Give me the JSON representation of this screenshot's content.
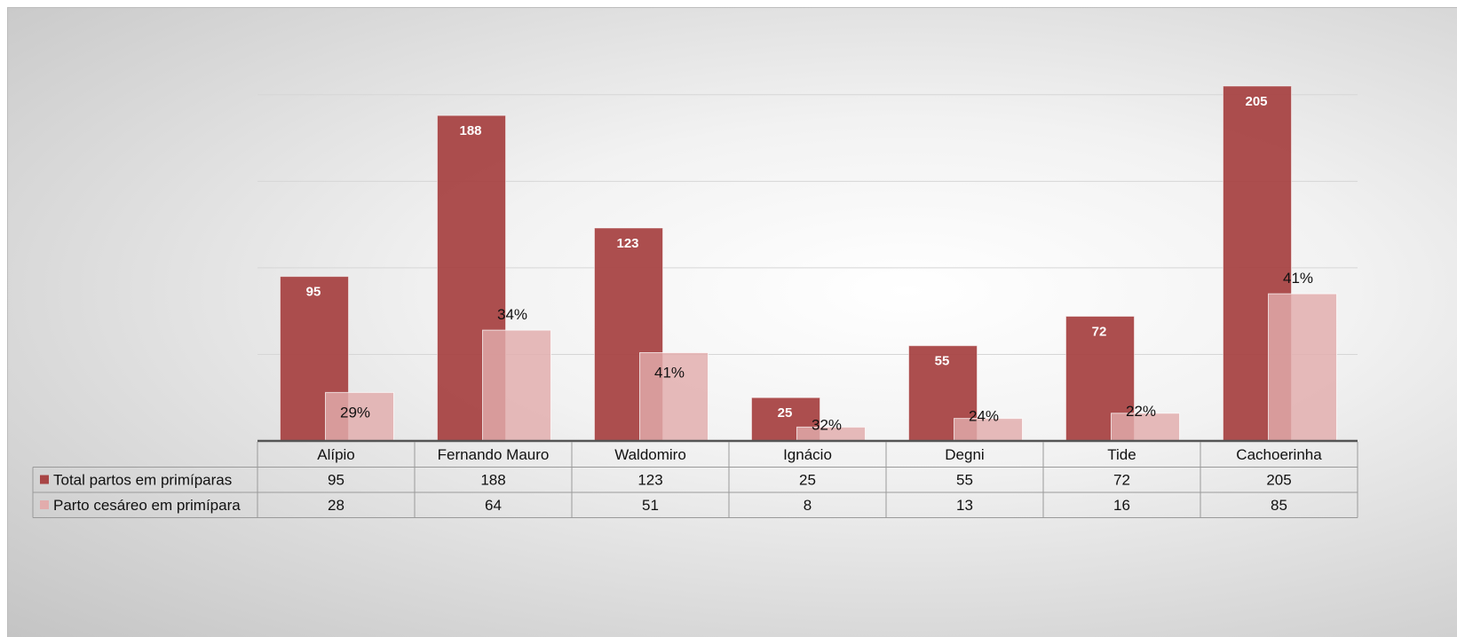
{
  "chart_data": {
    "type": "bar",
    "title": "",
    "xlabel": "",
    "ylabel": "",
    "ylim": [
      0,
      205
    ],
    "grid": true,
    "legend": "data-table-left",
    "categories": [
      "Alípio",
      "Fernando Mauro",
      "Waldomiro",
      "Ignácio",
      "Degni",
      "Tide",
      "Cachoerinha"
    ],
    "series": [
      {
        "name": "Total partos em primíparas",
        "color": "#a84545",
        "values": [
          95,
          188,
          123,
          25,
          55,
          72,
          205
        ],
        "labels": [
          "95",
          "188",
          "123",
          "25",
          "55",
          "72",
          "205"
        ]
      },
      {
        "name": "Parto cesáreo em primípara",
        "color": "#e2acac",
        "values": [
          28,
          64,
          51,
          8,
          13,
          16,
          85
        ],
        "labels": [
          "29%",
          "34%",
          "41%",
          "32%",
          "24%",
          "22%",
          "41%"
        ]
      }
    ]
  }
}
